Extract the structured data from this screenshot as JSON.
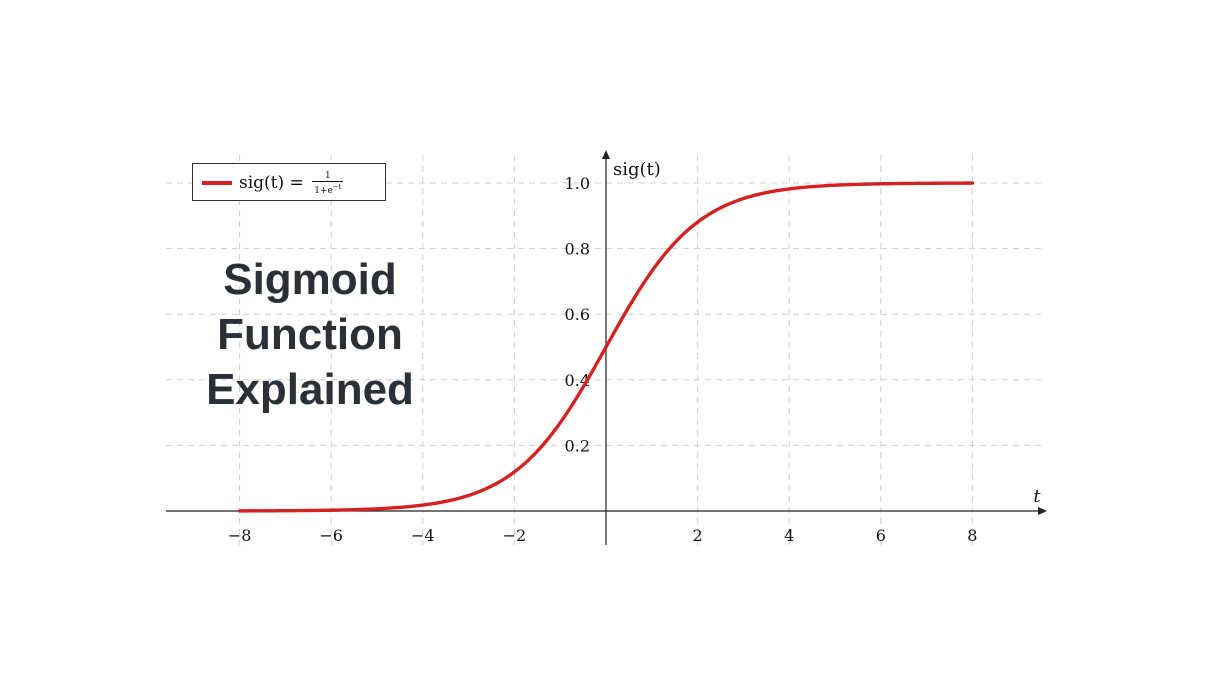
{
  "chart_data": {
    "type": "line",
    "title": "Sigmoid Function Explained",
    "xlabel": "t",
    "ylabel": "sig(t)",
    "xlim": [
      -9.5,
      9.5
    ],
    "ylim": [
      0,
      1.1
    ],
    "x_ticks": [
      -8,
      -6,
      -4,
      -2,
      2,
      4,
      6,
      8
    ],
    "x_tick_labels": [
      "−8",
      "−6",
      "−4",
      "−2",
      "2",
      "4",
      "6",
      "8"
    ],
    "y_ticks": [
      0.2,
      0.4,
      0.6,
      0.8,
      1.0
    ],
    "y_tick_labels": [
      "0.2",
      "0.4",
      "0.6",
      "0.8",
      "1.0"
    ],
    "grid": true,
    "legend_position": "top-left",
    "series": [
      {
        "name": "sig(t) = 1/(1+e^−t)",
        "color": "#d32222",
        "x": [
          -8,
          -7,
          -6,
          -5,
          -4,
          -3,
          -2,
          -1,
          0,
          1,
          2,
          3,
          4,
          5,
          6,
          7,
          8
        ],
        "y": [
          0.0003,
          0.0009,
          0.0025,
          0.0067,
          0.018,
          0.0474,
          0.1192,
          0.2689,
          0.5,
          0.7311,
          0.8808,
          0.9526,
          0.982,
          0.9933,
          0.9975,
          0.9991,
          0.9997
        ]
      }
    ]
  },
  "title_lines": [
    "Sigmoid",
    "Function",
    "Explained"
  ],
  "legend": {
    "prefix": "sig(t) = ",
    "numerator": "1",
    "denominator": "1+e",
    "exponent": "−t"
  }
}
